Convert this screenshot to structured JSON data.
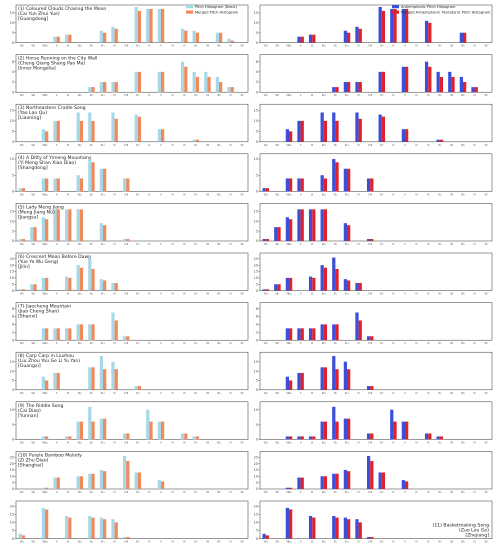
{
  "chart_data": {
    "type": "bar",
    "layout": "11 rows x 2 columns of grouped bar charts",
    "x_categories": [
      "ⅥI₁",
      "Ⅶ₁",
      "Ⅶb₁",
      "ⅠⅠ",
      "ⅡⅠ",
      "Ⅱb₁",
      "Ⅲ₁",
      "Ⅲ♭₁",
      "ⅠⅤ",
      "ⅣⅡ",
      "Ⅳ♯",
      "Ⅴ♭",
      "Ⅴ",
      "Ⅴ♯",
      "Ⅵ",
      "Ⅵ♭",
      "Ⅶ",
      "Ⅶ♭",
      "ⅠV",
      "ⅡV"
    ],
    "legend_left": [
      "Pitch Histogram (Basic)",
      "Merged Pitch Histogram"
    ],
    "legend_right": [
      "Antiemphonic Pitch Histogram",
      "Merged Antiemphonic Pentatonic Pitch Histogram"
    ],
    "colors": {
      "basic": "#a8d8e8",
      "merged": "#f08a5d",
      "anti": "#3b4fd8",
      "anti_merged": "#e0202a"
    },
    "panels": [
      {
        "title": [
          "(1) Coloured Clouds Chasing the Moon",
          "(Cai Yun Zhui Yue)",
          "[Guangdong]"
        ],
        "yticks": [
          0,
          5,
          10,
          15
        ],
        "ymax": 18,
        "left_basic": [
          0,
          0,
          0,
          3,
          4,
          0,
          0,
          6,
          8,
          0,
          18,
          17,
          17,
          0,
          7,
          6,
          0,
          5,
          2,
          0
        ],
        "left_merged": [
          0,
          0,
          0,
          3,
          4,
          0,
          0,
          5,
          7,
          0,
          16,
          17,
          17,
          0,
          6,
          5,
          0,
          5,
          1,
          0
        ],
        "right_anti": [
          0,
          0,
          0,
          3,
          4,
          0,
          0,
          6,
          8,
          0,
          18,
          17,
          17,
          0,
          11,
          0,
          0,
          5,
          0,
          0
        ],
        "right_merged": [
          0,
          0,
          0,
          3,
          4,
          0,
          0,
          5,
          7,
          0,
          16,
          17,
          17,
          0,
          10,
          0,
          0,
          5,
          0,
          0
        ]
      },
      {
        "title": [
          "(2) Horse Running on the City Wall",
          "(Cheng Qiang Shang Pao Ma)",
          "[Inner Mongolia]"
        ],
        "yticks": [
          0,
          2,
          4,
          6
        ],
        "ymax": 7,
        "left_basic": [
          0,
          0,
          0,
          0,
          0,
          0,
          1,
          2,
          2,
          0,
          4,
          0,
          4,
          0,
          6,
          4,
          4,
          3,
          1,
          0
        ],
        "left_merged": [
          0,
          0,
          0,
          0,
          0,
          0,
          1,
          2,
          2,
          0,
          4,
          0,
          4,
          0,
          5,
          3,
          3,
          2,
          1,
          0
        ],
        "right_anti": [
          0,
          0,
          0,
          0,
          0,
          0,
          1,
          2,
          2,
          0,
          4,
          0,
          5,
          0,
          6,
          4,
          4,
          3,
          1,
          0
        ],
        "right_merged": [
          0,
          0,
          0,
          0,
          0,
          0,
          1,
          2,
          2,
          0,
          4,
          0,
          5,
          0,
          5,
          3,
          3,
          2,
          1,
          0
        ]
      },
      {
        "title": [
          "(3) Northeastern Cradle Song",
          "(Yao Lan Qu)",
          "[Liaoning]"
        ],
        "yticks": [
          0,
          5,
          10,
          15
        ],
        "ymax": 17,
        "left_basic": [
          0,
          0,
          6,
          10,
          0,
          14,
          14,
          0,
          14,
          0,
          13,
          0,
          6,
          0,
          0,
          1,
          0,
          0,
          0,
          0
        ],
        "left_merged": [
          0,
          0,
          5,
          10,
          0,
          10,
          10,
          0,
          11,
          0,
          12,
          0,
          6,
          0,
          0,
          1,
          0,
          0,
          0,
          0
        ],
        "right_anti": [
          0,
          0,
          6,
          10,
          0,
          14,
          14,
          0,
          14,
          0,
          13,
          0,
          6,
          0,
          0,
          1,
          0,
          0,
          0,
          0
        ],
        "right_merged": [
          0,
          0,
          5,
          10,
          0,
          10,
          10,
          0,
          11,
          0,
          12,
          0,
          6,
          0,
          0,
          1,
          0,
          0,
          0,
          0
        ]
      },
      {
        "title": [
          "(4) A Ditty of Yimeng Mountains",
          "(Yi Meng Shan Xiao Diao)",
          "[Shangdong]"
        ],
        "yticks": [
          0,
          5,
          10
        ],
        "ymax": 11,
        "left_basic": [
          1,
          0,
          4,
          4,
          0,
          5,
          10,
          7,
          0,
          4,
          0,
          0,
          0,
          0,
          0,
          0,
          0,
          0,
          0,
          0
        ],
        "left_merged": [
          1,
          0,
          4,
          4,
          0,
          4,
          9,
          7,
          0,
          4,
          0,
          0,
          0,
          0,
          0,
          0,
          0,
          0,
          0,
          0
        ],
        "right_anti": [
          1,
          0,
          4,
          4,
          0,
          5,
          10,
          7,
          0,
          4,
          0,
          0,
          0,
          0,
          0,
          0,
          0,
          0,
          0,
          0
        ],
        "right_merged": [
          1,
          0,
          4,
          4,
          0,
          4,
          9,
          7,
          0,
          4,
          0,
          0,
          0,
          0,
          0,
          0,
          0,
          0,
          0,
          0
        ]
      },
      {
        "title": [
          "(5) Lady Meng Jiang",
          "(Meng Jiang Nü)",
          "[Jiangsu]"
        ],
        "yticks": [
          0,
          5,
          10,
          15
        ],
        "ymax": 18,
        "left_basic": [
          1,
          7,
          12,
          16,
          16,
          16,
          0,
          9,
          0,
          1,
          0,
          0,
          0,
          0,
          0,
          0,
          0,
          0,
          0,
          0
        ],
        "left_merged": [
          1,
          7,
          11,
          16,
          16,
          16,
          0,
          8,
          0,
          1,
          0,
          0,
          0,
          0,
          0,
          0,
          0,
          0,
          0,
          0
        ],
        "right_anti": [
          1,
          7,
          12,
          16,
          16,
          16,
          0,
          9,
          0,
          1,
          0,
          0,
          0,
          0,
          0,
          0,
          0,
          0,
          0,
          0
        ],
        "right_merged": [
          1,
          7,
          11,
          16,
          16,
          16,
          0,
          8,
          0,
          1,
          0,
          0,
          0,
          0,
          0,
          0,
          0,
          0,
          0,
          0
        ]
      },
      {
        "title": [
          "(6) Crescent Moon Before Dawn",
          "(Yue Ya Wu Geng)",
          "[Jilin]"
        ],
        "yticks": [
          0,
          5,
          10,
          15,
          20,
          25
        ],
        "ymax": 28,
        "left_basic": [
          1,
          5,
          10,
          0,
          11,
          20,
          26,
          9,
          6,
          0,
          0,
          0,
          0,
          0,
          0,
          0,
          0,
          0,
          0,
          0
        ],
        "left_merged": [
          1,
          5,
          10,
          0,
          10,
          18,
          17,
          8,
          6,
          0,
          0,
          0,
          0,
          0,
          0,
          0,
          0,
          0,
          0,
          0
        ],
        "right_anti": [
          1,
          5,
          10,
          0,
          11,
          20,
          26,
          9,
          6,
          0,
          0,
          0,
          0,
          0,
          0,
          0,
          0,
          0,
          0,
          0
        ],
        "right_merged": [
          1,
          5,
          10,
          0,
          10,
          18,
          17,
          8,
          6,
          0,
          0,
          0,
          0,
          0,
          0,
          0,
          0,
          0,
          0,
          0
        ]
      },
      {
        "title": [
          "(7) Jiaocheng Mountain",
          "(Jiao Cheng Shan)",
          "[Shanxi]"
        ],
        "yticks": [
          0,
          2,
          4,
          6,
          8
        ],
        "ymax": 9,
        "left_basic": [
          0,
          0,
          3,
          3,
          3,
          4,
          4,
          0,
          7,
          1,
          0,
          0,
          0,
          0,
          0,
          0,
          0,
          0,
          0,
          0
        ],
        "left_merged": [
          0,
          0,
          3,
          3,
          3,
          4,
          4,
          0,
          5,
          1,
          0,
          0,
          0,
          0,
          0,
          0,
          0,
          0,
          0,
          0
        ],
        "right_anti": [
          0,
          0,
          3,
          3,
          3,
          4,
          4,
          0,
          7,
          1,
          0,
          0,
          0,
          0,
          0,
          0,
          0,
          0,
          0,
          0
        ],
        "right_merged": [
          0,
          0,
          3,
          3,
          3,
          4,
          4,
          0,
          5,
          1,
          0,
          0,
          0,
          0,
          0,
          0,
          0,
          0,
          0,
          0
        ]
      },
      {
        "title": [
          "(8) Carp Carp in Liuzhou",
          "(Liu Zhou You Ge Li Yu Yan)",
          "[Guangxi]"
        ],
        "yticks": [
          0,
          5,
          10,
          15
        ],
        "ymax": 19,
        "left_basic": [
          0,
          0,
          7,
          9,
          0,
          0,
          12,
          18,
          15,
          0,
          2,
          0,
          0,
          0,
          0,
          0,
          0,
          0,
          0,
          0
        ],
        "left_merged": [
          0,
          0,
          5,
          9,
          0,
          0,
          12,
          11,
          11,
          0,
          2,
          0,
          0,
          0,
          0,
          0,
          0,
          0,
          0,
          0
        ],
        "right_anti": [
          0,
          0,
          7,
          9,
          0,
          12,
          18,
          15,
          0,
          2,
          0,
          0,
          0,
          0,
          0,
          0,
          0,
          0,
          0,
          0
        ],
        "right_merged": [
          0,
          0,
          5,
          9,
          0,
          12,
          11,
          11,
          0,
          2,
          0,
          0,
          0,
          0,
          0,
          0,
          0,
          0,
          0,
          0
        ]
      },
      {
        "title": [
          "(9) The Riddle Song",
          "(Cai Diao)",
          "[Yunnan]"
        ],
        "yticks": [
          0,
          5,
          10
        ],
        "ymax": 12,
        "left_basic": [
          0,
          0,
          1,
          0,
          1,
          6,
          11,
          7,
          0,
          2,
          0,
          10,
          6,
          0,
          2,
          1,
          0,
          0,
          0,
          0
        ],
        "left_merged": [
          0,
          0,
          1,
          0,
          1,
          6,
          6,
          7,
          0,
          2,
          0,
          6,
          6,
          0,
          2,
          1,
          0,
          0,
          0,
          0
        ],
        "right_anti": [
          0,
          0,
          1,
          1,
          1,
          6,
          11,
          7,
          0,
          2,
          0,
          10,
          6,
          0,
          2,
          1,
          0,
          0,
          0,
          0
        ],
        "right_merged": [
          0,
          0,
          1,
          1,
          1,
          6,
          6,
          7,
          0,
          2,
          0,
          6,
          6,
          0,
          2,
          1,
          0,
          0,
          0,
          0
        ]
      },
      {
        "title": [
          "(10) Purple Bamboo Melody",
          "(Zi Zhu Diao)",
          "[Shanghai]"
        ],
        "yticks": [
          0,
          5,
          10,
          15,
          20,
          25
        ],
        "ymax": 28,
        "left_basic": [
          0,
          0,
          1,
          9,
          0,
          10,
          12,
          15,
          0,
          26,
          13,
          0,
          7,
          0,
          0,
          0,
          0,
          0,
          0,
          0
        ],
        "left_merged": [
          0,
          0,
          1,
          9,
          0,
          10,
          12,
          14,
          0,
          22,
          13,
          0,
          6,
          0,
          0,
          0,
          0,
          0,
          0,
          0
        ],
        "right_anti": [
          0,
          0,
          1,
          9,
          0,
          10,
          12,
          15,
          0,
          26,
          13,
          0,
          7,
          0,
          0,
          0,
          0,
          0,
          0,
          0
        ],
        "right_merged": [
          0,
          0,
          1,
          9,
          0,
          10,
          12,
          14,
          0,
          22,
          13,
          0,
          6,
          0,
          0,
          0,
          0,
          0,
          0,
          0
        ]
      },
      {
        "title": [
          "(11) Basketmaking Song",
          "(Zuo Lou Ge)",
          "[Zhejiang]"
        ],
        "yticks": [
          0,
          5,
          10,
          15,
          20
        ],
        "ymax": 22,
        "left_basic": [
          3,
          0,
          19,
          0,
          14,
          0,
          14,
          13,
          12,
          1,
          0,
          0,
          0,
          0,
          0,
          0,
          0,
          0,
          0,
          0
        ],
        "left_merged": [
          2,
          0,
          18,
          0,
          13,
          0,
          13,
          12,
          10,
          1,
          0,
          0,
          0,
          0,
          0,
          0,
          0,
          0,
          0,
          0
        ],
        "right_anti": [
          3,
          0,
          19,
          0,
          14,
          0,
          14,
          13,
          12,
          1,
          0,
          0,
          0,
          0,
          0,
          0,
          0,
          0,
          0,
          0
        ],
        "right_merged": [
          2,
          0,
          18,
          0,
          13,
          0,
          13,
          12,
          10,
          1,
          0,
          0,
          0,
          0,
          0,
          0,
          0,
          0,
          0,
          0
        ]
      }
    ]
  }
}
